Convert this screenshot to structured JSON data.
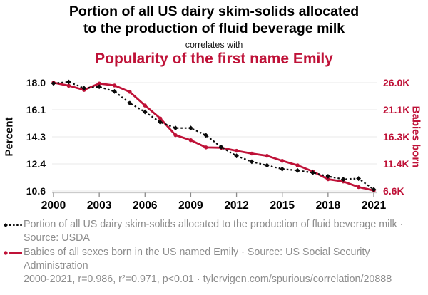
{
  "header": {
    "title_line1": "Portion of all US dairy skim-solids allocated",
    "title_line2": "to the production of fluid beverage milk",
    "connector": "correlates with",
    "subtitle": "Popularity of the first name Emily"
  },
  "chart_data": {
    "type": "line",
    "x": [
      2000,
      2001,
      2002,
      2003,
      2004,
      2005,
      2006,
      2007,
      2008,
      2009,
      2010,
      2011,
      2012,
      2013,
      2014,
      2015,
      2016,
      2017,
      2018,
      2019,
      2020,
      2021
    ],
    "series": [
      {
        "name": "Portion of all US dairy skim-solids allocated to the production of fluid beverage milk",
        "axis": "left",
        "unit": "percent",
        "color": "#0a0a0a",
        "line_style": "dotted",
        "marker": "diamond",
        "values": [
          17.95,
          18.05,
          17.62,
          17.72,
          17.4,
          16.6,
          16.0,
          15.3,
          14.9,
          14.9,
          14.4,
          13.6,
          13.0,
          12.6,
          12.35,
          12.1,
          12.0,
          11.85,
          11.6,
          11.4,
          11.45,
          10.7
        ]
      },
      {
        "name": "Babies of all sexes born in the US named Emily",
        "axis": "right",
        "unit": "thousands of babies",
        "color": "#bf1238",
        "line_style": "solid",
        "marker": "circle",
        "values": [
          26.0,
          25.45,
          24.7,
          25.85,
          25.5,
          24.35,
          21.9,
          19.6,
          16.6,
          15.7,
          14.4,
          14.35,
          13.8,
          13.3,
          12.9,
          12.0,
          11.2,
          10.1,
          8.7,
          8.3,
          7.3,
          6.7
        ]
      }
    ],
    "left_axis": {
      "label": "Percent",
      "tick_labels": [
        "18.0",
        "16.1",
        "14.3",
        "12.4",
        "10.6"
      ],
      "min": 10.6,
      "max": 18.0
    },
    "right_axis": {
      "label": "Babies born",
      "tick_labels": [
        "26.0K",
        "21.1K",
        "16.3K",
        "11.4K",
        "6.6K"
      ],
      "min": 6.6,
      "max": 26.0
    },
    "x_axis": {
      "tick_years": [
        2000,
        2003,
        2006,
        2009,
        2012,
        2015,
        2018,
        2021
      ]
    },
    "grid": true,
    "legend_position": "bottom"
  },
  "legend": {
    "items": [
      {
        "label": "Portion of all US dairy skim-solids allocated to the production of fluid beverage milk · Source: USDA"
      },
      {
        "label": "Babies of all sexes born in the US named Emily · Source: US Social Security Administration"
      }
    ]
  },
  "footer": {
    "stats": "2000-2021, r=0.986, r²=0.971, p<0.01 · tylervigen.com/spurious/correlation/20888"
  },
  "colors": {
    "red": "#bf1238",
    "black": "#0a0a0a",
    "grid": "#e8e8e8",
    "axis_line": "#cbcbcb",
    "tick": "#8a8a8a",
    "muted_text": "#8c8c8c"
  }
}
